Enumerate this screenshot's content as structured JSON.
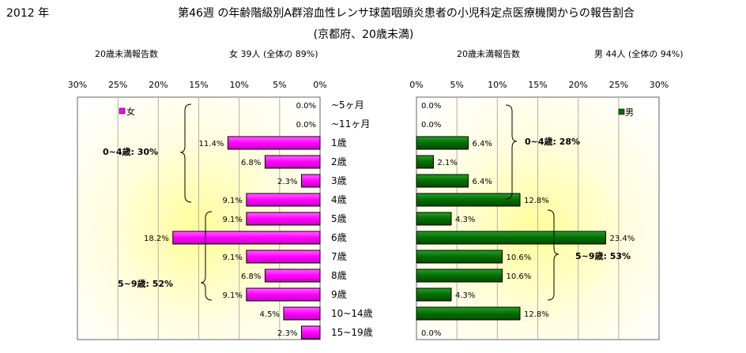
{
  "header": {
    "year": "2012 年",
    "title": "第46週 の年齢階級別A群溶血性レンサ球菌咽頭炎患者の小児科定点医療機関からの報告割合",
    "subtitle": "(京都府、20歳未満)"
  },
  "left_panel": {
    "caption_label": "20歳未満報告数",
    "caption_info": "女  39人 (全体の  89%)",
    "group_label_1": "0~4歳: 30%",
    "group_label_2": "5~9歳: 52%"
  },
  "right_panel": {
    "caption_label": "20歳未満報告数",
    "caption_info": "男  44人 (全体の  94%)",
    "group_label_1": "0~4歳: 28%",
    "group_label_2": "5~9歳: 53%"
  },
  "chart_data": {
    "type": "bar",
    "orientation": "horizontal",
    "categories": [
      "~5ヶ月",
      "~11ヶ月",
      "1歳",
      "2歳",
      "3歳",
      "4歳",
      "5歳",
      "6歳",
      "7歳",
      "8歳",
      "9歳",
      "10~14歳",
      "15~19歳"
    ],
    "female": {
      "name": "女",
      "values": [
        0.0,
        0.0,
        11.4,
        6.8,
        2.3,
        9.1,
        9.1,
        18.2,
        9.1,
        6.8,
        9.1,
        4.5,
        2.3
      ],
      "labels": [
        "0.0%",
        "0.0%",
        "11.4%",
        "6.8%",
        "2.3%",
        "9.1%",
        "9.1%",
        "18.2%",
        "9.1%",
        "6.8%",
        "9.1%",
        "4.5%",
        "2.3%"
      ],
      "color": "#ff00ff",
      "xlim": [
        0,
        30
      ],
      "axis_direction": "reversed",
      "ticks": [
        "30%",
        "25%",
        "20%",
        "15%",
        "10%",
        "5%",
        "0%"
      ],
      "legend": "top-left"
    },
    "male": {
      "name": "男",
      "values": [
        0.0,
        0.0,
        6.4,
        2.1,
        6.4,
        12.8,
        4.3,
        23.4,
        10.6,
        10.6,
        4.3,
        12.8,
        0.0
      ],
      "labels": [
        "0.0%",
        "0.0%",
        "6.4%",
        "2.1%",
        "6.4%",
        "12.8%",
        "4.3%",
        "23.4%",
        "10.6%",
        "10.6%",
        "4.3%",
        "12.8%",
        "0.0%"
      ],
      "color": "#007000",
      "xlim": [
        0,
        30
      ],
      "ticks": [
        "0%",
        "5%",
        "10%",
        "15%",
        "20%",
        "25%",
        "30%"
      ],
      "legend": "top-right"
    },
    "grid": true,
    "background": "yellow radial gradient"
  }
}
